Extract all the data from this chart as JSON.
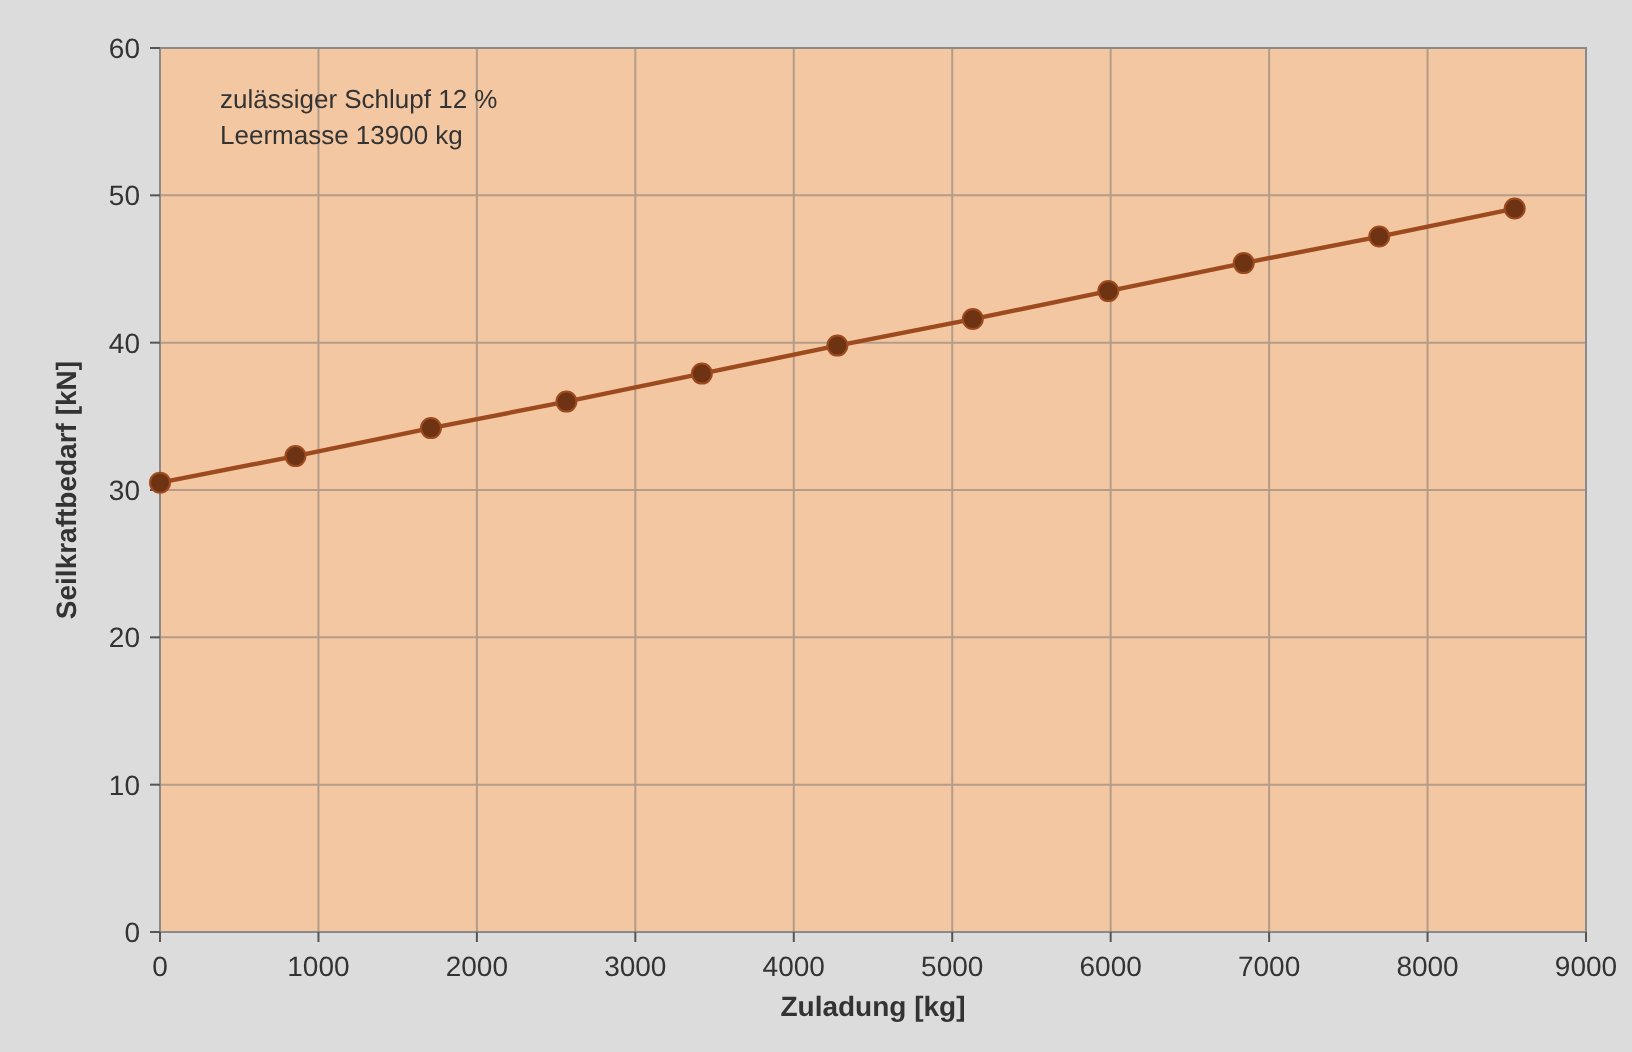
{
  "chart_data": {
    "type": "line",
    "xlabel": "Zuladung [kg]",
    "ylabel": "Seilkraftbedarf [kN]",
    "x": [
      0,
      855,
      1710,
      2565,
      3420,
      4275,
      5130,
      5985,
      6840,
      7695,
      8550
    ],
    "series": [
      {
        "color": "#9c4a1e",
        "values": [
          30.5,
          32.3,
          34.2,
          36.0,
          37.9,
          39.8,
          41.6,
          43.5,
          45.4,
          47.2,
          49.1
        ]
      }
    ],
    "xlim": [
      0,
      9000
    ],
    "xticks": [
      0,
      1000,
      2000,
      3000,
      4000,
      5000,
      6000,
      7000,
      8000,
      9000
    ],
    "ylim": [
      0,
      60
    ],
    "yticks": [
      0,
      10,
      20,
      30,
      40,
      50,
      60
    ],
    "grid": true,
    "marker": "circle",
    "line_style": "solid",
    "annotations": [
      "zulässiger Schlupf 12 %",
      "Leermasse 13900 kg"
    ]
  }
}
